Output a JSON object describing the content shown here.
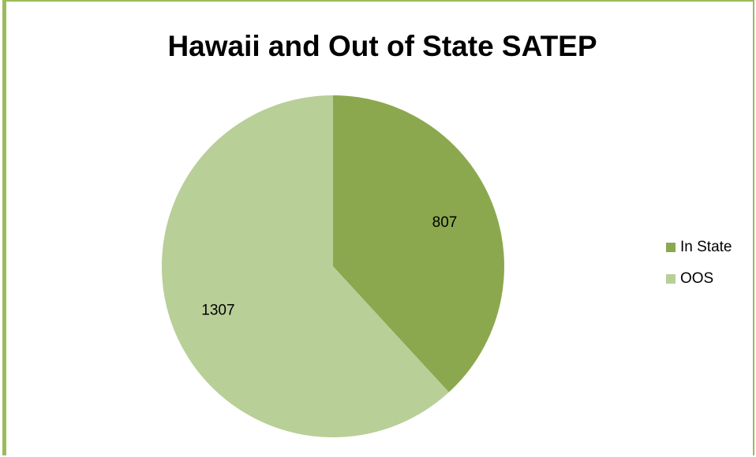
{
  "chart_data": {
    "type": "pie",
    "title": "Hawaii and Out of State SATEP",
    "categories": [
      "In State",
      "OOS"
    ],
    "values": [
      807,
      1307
    ],
    "colors": [
      "#8ba84f",
      "#b8cf97"
    ],
    "legend_position": "right",
    "data_labels": [
      "807",
      "1307"
    ]
  }
}
